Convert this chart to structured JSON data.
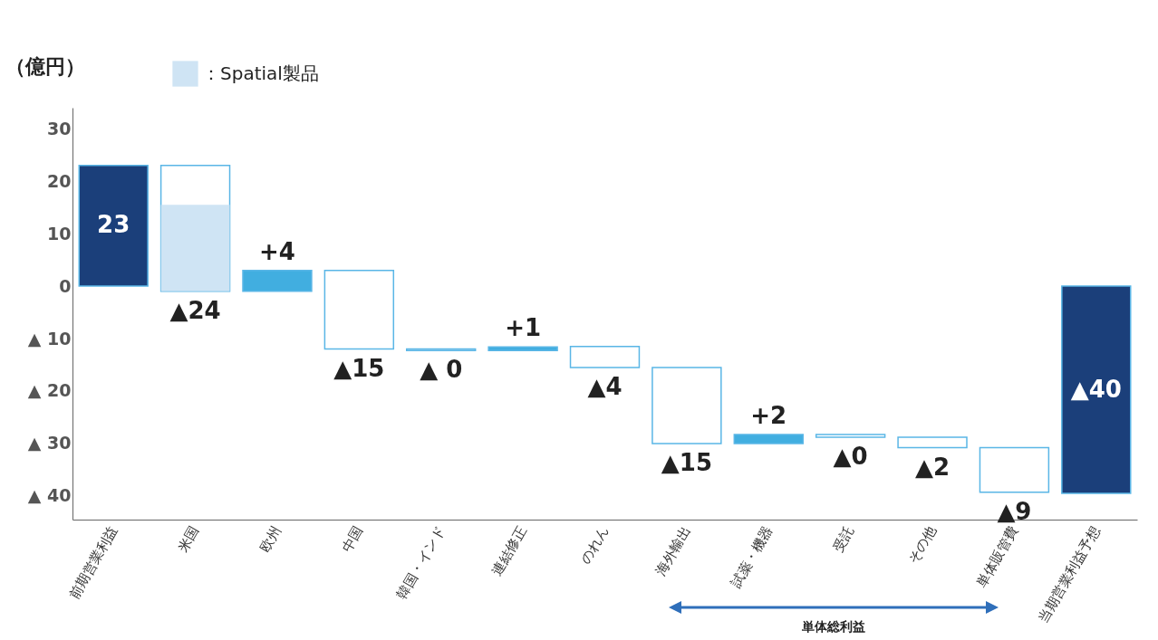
{
  "chart_data": {
    "type": "bar",
    "ylabel": "（億円）",
    "categories": [
      "前期営業利益",
      "米国",
      "欧州",
      "中国",
      "韓国・インド",
      "連結修正",
      "のれん",
      "海外輸出",
      "試薬・機器",
      "受託",
      "その他",
      "単体販管費",
      "当期営業利益予想"
    ],
    "series": [
      {
        "values": [
          23,
          -24,
          4,
          -15,
          -0.3,
          0.7,
          -4,
          -14.5,
          1.7,
          -0.5,
          -2,
          -8.5,
          -39.5
        ],
        "base": [
          0,
          23,
          -1,
          3,
          -12,
          -12.3,
          -11.5,
          -15.5,
          -30,
          -28.3,
          -28.8,
          -30.8,
          0
        ],
        "colors": [
          "#1b3f7a",
          "#ffffff",
          "#41aee0",
          "#ffffff",
          "#ffffff",
          "#41aee0",
          "#ffffff",
          "#ffffff",
          "#41aee0",
          "#ffffff",
          "#ffffff",
          "#ffffff",
          "#1b3f7a"
        ],
        "value_labels": [
          "23",
          "▲24",
          "+4",
          "▲15",
          "▲ 0",
          "+1",
          "▲4",
          "▲15",
          "+2",
          "▲0",
          "▲2",
          "▲9",
          "▲40"
        ]
      },
      {
        "name": "：Spatial製品",
        "color": "#cfe4f4",
        "values": [
          null,
          16.5,
          null,
          null,
          null,
          null,
          null,
          null,
          null,
          null,
          null,
          null,
          null
        ],
        "base": [
          null,
          -1,
          null,
          null,
          null,
          null,
          null,
          null,
          null,
          null,
          null,
          null,
          null
        ]
      }
    ],
    "ylim": [
      -44.5,
      34
    ],
    "yticks": [
      30,
      20,
      10,
      0,
      {
        "value": -10,
        "label": "▲ 10"
      },
      {
        "value": -20,
        "label": "▲ 20"
      },
      {
        "value": -30,
        "label": "▲ 30"
      },
      {
        "value": -40,
        "label": "▲ 40"
      }
    ],
    "legend": "top left",
    "annotations": [
      "単体総利益"
    ]
  }
}
